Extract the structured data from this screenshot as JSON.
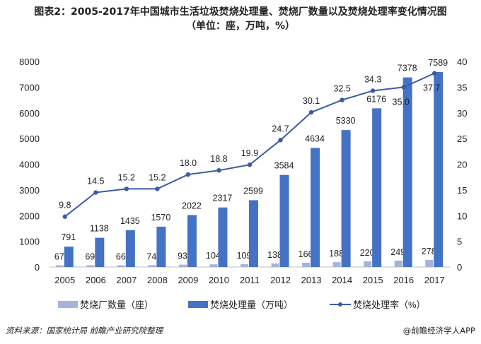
{
  "chart_data": {
    "type": "bar+line",
    "title": "图表2：2005-2017年中国城市生活垃圾焚烧处理量、焚烧厂数量以及焚烧处理率变化情况图",
    "subtitle": "（单位：座，万吨，%）",
    "categories": [
      "2005",
      "2006",
      "2007",
      "2008",
      "2009",
      "2010",
      "2011",
      "2012",
      "2013",
      "2014",
      "2015",
      "2016",
      "2017"
    ],
    "series": [
      {
        "name": "焚烧厂数量（座）",
        "type": "bar",
        "axis": "left",
        "color": "#a6b4dc",
        "values": [
          67,
          69,
          66,
          74,
          93,
          104,
          109,
          138,
          166,
          188,
          220,
          249,
          278
        ]
      },
      {
        "name": "焚烧处理量（万吨）",
        "type": "bar",
        "axis": "left",
        "color": "#4472c4",
        "values": [
          791,
          1138,
          1435,
          1570,
          2022,
          2317,
          2599,
          3584,
          4634,
          5330,
          6176,
          7378,
          7589
        ]
      },
      {
        "name": "焚烧处理率（%）",
        "type": "line",
        "axis": "right",
        "color": "#3a5ba8",
        "values": [
          9.8,
          14.5,
          15.2,
          15.2,
          18.0,
          18.8,
          19.9,
          24.7,
          30.1,
          32.5,
          34.3,
          35.0,
          37.7
        ]
      }
    ],
    "ylim_left": [
      0,
      8000
    ],
    "yticks_left": [
      0,
      1000,
      2000,
      3000,
      4000,
      5000,
      6000,
      7000,
      8000
    ],
    "ylim_right": [
      0,
      40
    ],
    "yticks_right": [
      0,
      5,
      10,
      15,
      20,
      25,
      30,
      35,
      40
    ],
    "grid": false,
    "legend_position": "bottom"
  },
  "footer": {
    "source": "资料来源：国家统计局  前瞻产业研究院整理",
    "credit": "@前瞻经济学人APP"
  }
}
